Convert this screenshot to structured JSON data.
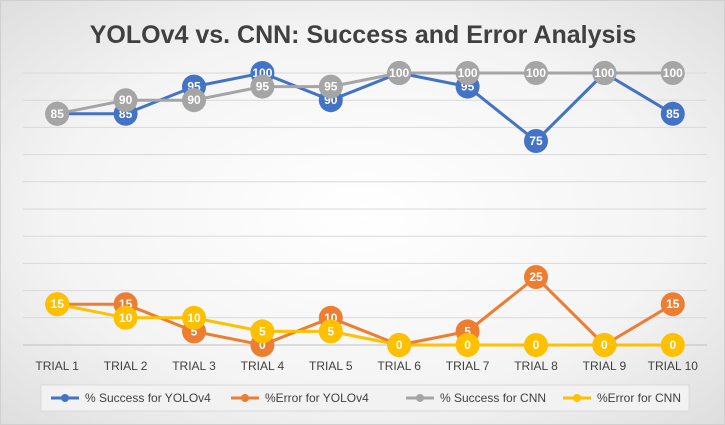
{
  "chart_data": {
    "type": "line",
    "title": "YOLOv4 vs. CNN: Success and Error Analysis",
    "categories": [
      "TRIAL 1",
      "TRIAL 2",
      "TRIAL 3",
      "TRIAL 4",
      "TRIAL 5",
      "TRIAL 6",
      "TRIAL 7",
      "TRIAL 8",
      "TRIAL 9",
      "TRIAL 10"
    ],
    "ylim": [
      0,
      100
    ],
    "grid": true,
    "legend_position": "bottom",
    "series": [
      {
        "name": "% Success for YOLOv4",
        "color": "#4472C4",
        "values": [
          85,
          85,
          95,
          100,
          90,
          100,
          95,
          75,
          100,
          85
        ]
      },
      {
        "name": "%Error for YOLOv4",
        "color": "#ED7D31",
        "values": [
          15,
          15,
          5,
          0,
          10,
          0,
          5,
          25,
          0,
          15
        ]
      },
      {
        "name": "% Success for CNN",
        "color": "#A5A5A5",
        "values": [
          85,
          90,
          90,
          95,
          95,
          100,
          100,
          100,
          100,
          100
        ]
      },
      {
        "name": "%Error for CNN",
        "color": "#FFC000",
        "values": [
          15,
          10,
          10,
          5,
          5,
          0,
          0,
          0,
          0,
          0
        ]
      }
    ]
  }
}
